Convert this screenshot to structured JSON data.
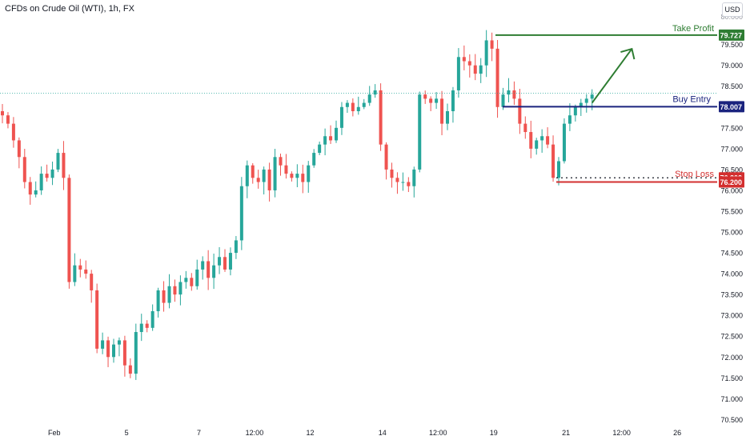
{
  "header": {
    "symbol_title": "CFDs on Crude Oil (WTI), 1h, FX",
    "currency": "USD"
  },
  "colors": {
    "up": "#26a69a",
    "down": "#ef5350",
    "take_profit": "#2e7d32",
    "buy_entry": "#1a237e",
    "stop_loss": "#d32f2f",
    "axis_text": "#131722",
    "current_price_line": "#26a69a"
  },
  "chart_data": {
    "type": "candlestick",
    "y_axis": {
      "range": [
        70.45,
        80.3
      ],
      "ticks": [
        70.5,
        71.0,
        71.5,
        72.0,
        72.5,
        73.0,
        73.5,
        74.0,
        74.5,
        75.0,
        75.5,
        76.0,
        76.5,
        77.0,
        77.5,
        78.5,
        79.0,
        79.5
      ],
      "tick_labels": [
        "70.500",
        "71.000",
        "71.500",
        "72.000",
        "72.500",
        "73.000",
        "73.500",
        "74.000",
        "74.500",
        "75.000",
        "75.500",
        "76.000",
        "76.500",
        "77.000",
        "77.500",
        "78.500",
        "79.000",
        "79.500"
      ],
      "partial_top_label": "80.000",
      "side": "right"
    },
    "x_axis": {
      "ticks": [
        {
          "label": "Feb",
          "bar": 5
        },
        {
          "label": "5",
          "bar": 18
        },
        {
          "label": "7",
          "bar": 31
        },
        {
          "label": "12:00",
          "bar": 41
        },
        {
          "label": "12",
          "bar": 51
        },
        {
          "label": "14",
          "bar": 64
        },
        {
          "label": "12:00",
          "bar": 74
        },
        {
          "label": "19",
          "bar": 84
        },
        {
          "label": "21",
          "bar": 97
        },
        {
          "label": "12:00",
          "bar": 107
        },
        {
          "label": "26",
          "bar": 117
        }
      ]
    },
    "bar_count": 130,
    "closes": [
      77.8,
      77.6,
      77.2,
      76.8,
      76.2,
      75.9,
      76.0,
      76.4,
      76.3,
      76.5,
      76.9,
      76.3,
      73.8,
      74.2,
      74.1,
      74.0,
      73.6,
      72.2,
      72.4,
      72.0,
      72.3,
      72.4,
      71.8,
      71.6,
      72.6,
      72.8,
      72.7,
      73.1,
      73.6,
      73.3,
      73.7,
      73.5,
      73.8,
      73.9,
      73.7,
      74.1,
      74.3,
      73.9,
      74.2,
      74.4,
      74.1,
      74.5,
      74.8,
      76.1,
      76.6,
      76.3,
      76.2,
      76.5,
      76.0,
      76.8,
      76.6,
      76.4,
      76.3,
      76.4,
      76.2,
      76.6,
      76.9,
      77.1,
      77.3,
      77.2,
      77.5,
      78.0,
      78.1,
      77.9,
      78.0,
      78.1,
      78.3,
      78.4,
      77.1,
      76.5,
      76.3,
      76.2,
      76.2,
      76.1,
      76.5,
      78.3,
      78.2,
      78.1,
      78.2,
      77.6,
      77.9,
      78.4,
      79.2,
      79.1,
      79.0,
      78.8,
      79.0,
      79.6,
      79.4,
      78.0,
      78.3,
      78.4,
      78.2,
      77.6,
      77.4,
      77.0,
      77.2,
      77.3,
      77.1,
      76.3,
      76.7,
      77.6,
      77.8,
      78.0,
      78.1,
      78.2,
      78.3
    ],
    "current_price": 78.33,
    "annotations": {
      "take_profit": {
        "label": "Take Profit",
        "price": 79.727,
        "price_label": "79.727"
      },
      "buy_entry": {
        "label": "Buy Entry",
        "price": 78.007,
        "price_label": "78.007"
      },
      "stop_loss": {
        "label": "Stop Loss",
        "price": 76.2,
        "price_label": "76.200",
        "dotted_price": 76.302,
        "dotted_price_label": "76.302"
      },
      "arrow": {
        "from_bar": 106,
        "from_price": 78.1,
        "to_bar": 112,
        "to_price": 79.3
      }
    },
    "grid": false,
    "legend": "none"
  }
}
